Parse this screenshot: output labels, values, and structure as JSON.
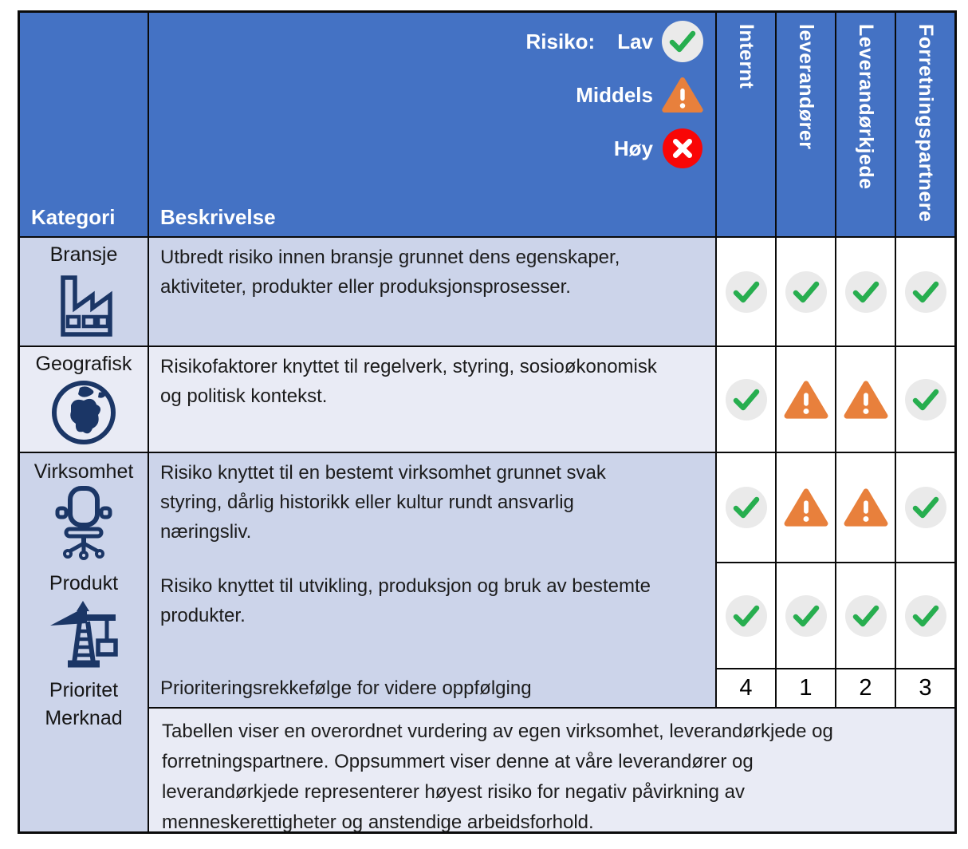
{
  "colors": {
    "header_bg": "#4472C4",
    "row_dark": "#CCD4EA",
    "row_light": "#E9EBF5",
    "icon_navy": "#1B3666",
    "check_green": "#27AE4F",
    "warning_orange": "#E8803C",
    "high_red": "#F90606"
  },
  "header": {
    "kategori_label": "Kategori",
    "beskrivelse_label": "Beskrivelse",
    "legend": {
      "title": "Risiko:",
      "items": [
        {
          "label": "Lav",
          "icon": "check"
        },
        {
          "label": "Middels",
          "icon": "warning"
        },
        {
          "label": "Høy",
          "icon": "cross"
        }
      ]
    },
    "columns": [
      "Internt",
      "leverandører",
      "Leverandørkjede",
      "Forretningspartnere"
    ]
  },
  "rows": [
    {
      "category": "Bransje",
      "icon": "factory-icon",
      "description": "Utbredt risiko innen bransje grunnet dens egenskaper,\naktiviteter, produkter eller produksjonsprosesser.",
      "ratings": [
        "check",
        "check",
        "check",
        "check"
      ]
    },
    {
      "category": "Geografisk",
      "icon": "globe-icon",
      "description": "Risikofaktorer knyttet til regelverk, styring, sosioøkonomisk\nog politisk kontekst.",
      "ratings": [
        "check",
        "warning",
        "warning",
        "check"
      ]
    },
    {
      "category": "Virksomhet",
      "icon": "office-chair-icon",
      "description": "Risiko knyttet til en bestemt virksomhet grunnet svak\nstyring, dårlig historikk eller kultur rundt ansvarlig\nnæringsliv.",
      "ratings": [
        "check",
        "warning",
        "warning",
        "check"
      ]
    },
    {
      "category": "Produkt",
      "icon": "crane-icon",
      "description": "Risiko knyttet til utvikling, produksjon og bruk av bestemte\nprodukter.",
      "ratings": [
        "check",
        "check",
        "check",
        "check"
      ]
    }
  ],
  "priority": {
    "category": "Prioritet",
    "description": "Prioriteringsrekkefølge for videre oppfølging",
    "values": [
      4,
      1,
      2,
      3
    ]
  },
  "note": {
    "category": "Merknad",
    "text": "Tabellen viser en overordnet vurdering av egen virksomhet, leverandørkjede og\nforretningspartnere. Oppsummert viser denne at våre leverandører og\nleverandørkjede representerer høyest risiko for negativ påvirkning av\nmenneskerettigheter og anstendige arbeidsforhold."
  }
}
